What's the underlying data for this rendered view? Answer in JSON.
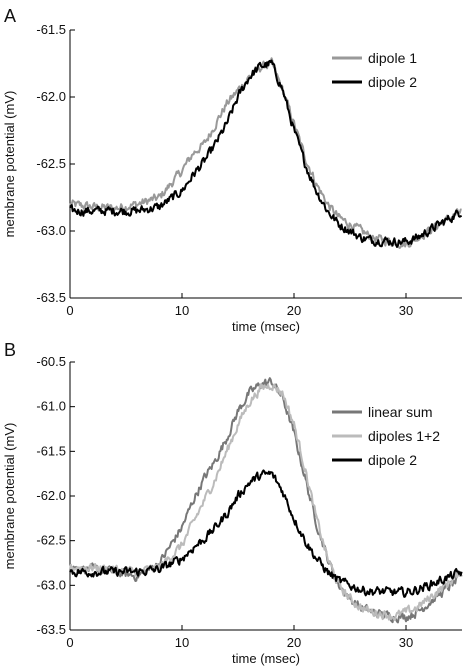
{
  "chart_data": [
    {
      "panel_label": "A",
      "type": "line",
      "xlabel": "time (msec)",
      "ylabel": "membrane potential (mV)",
      "xlim": [
        0,
        35
      ],
      "ylim": [
        -63.5,
        -61.5
      ],
      "xticks": [
        "0",
        "10",
        "20",
        "30"
      ],
      "yticks": [
        "-61.5",
        "-62.0",
        "-62.5",
        "-63.0",
        "-63.5"
      ],
      "legend_position": "top-right",
      "series": [
        {
          "name": "dipole 1",
          "color": "#999999",
          "x": [
            0,
            2,
            4,
            6,
            8,
            10,
            11,
            12,
            13,
            14,
            15,
            16,
            17,
            18,
            19,
            20,
            21,
            22,
            23,
            24,
            25,
            26,
            27,
            28,
            29,
            30,
            31,
            32,
            33,
            34,
            35
          ],
          "y": [
            -62.8,
            -62.82,
            -62.83,
            -62.8,
            -62.75,
            -62.55,
            -62.42,
            -62.35,
            -62.2,
            -62.05,
            -61.95,
            -61.85,
            -61.78,
            -61.75,
            -61.95,
            -62.2,
            -62.45,
            -62.65,
            -62.8,
            -62.9,
            -62.95,
            -63.0,
            -63.05,
            -63.07,
            -63.08,
            -63.1,
            -63.05,
            -63.0,
            -62.95,
            -62.9,
            -62.85
          ]
        },
        {
          "name": "dipole 2",
          "color": "#000000",
          "x": [
            0,
            2,
            4,
            6,
            8,
            10,
            11,
            12,
            13,
            14,
            15,
            16,
            17,
            18,
            19,
            20,
            21,
            22,
            23,
            24,
            25,
            26,
            27,
            28,
            29,
            30,
            31,
            32,
            33,
            34,
            35
          ],
          "y": [
            -62.85,
            -62.85,
            -62.85,
            -62.85,
            -62.82,
            -62.7,
            -62.58,
            -62.48,
            -62.35,
            -62.2,
            -62.0,
            -61.85,
            -61.77,
            -61.75,
            -61.95,
            -62.25,
            -62.5,
            -62.7,
            -62.85,
            -62.95,
            -63.0,
            -63.05,
            -63.07,
            -63.07,
            -63.08,
            -63.08,
            -63.05,
            -63.0,
            -62.95,
            -62.9,
            -62.85
          ]
        }
      ]
    },
    {
      "panel_label": "B",
      "type": "line",
      "xlabel": "time (msec)",
      "ylabel": "membrane potential (mV)",
      "xlim": [
        0,
        35
      ],
      "ylim": [
        -63.5,
        -60.5
      ],
      "xticks": [
        "0",
        "10",
        "20",
        "30"
      ],
      "yticks": [
        "-60.5",
        "-61.0",
        "-61.5",
        "-62.0",
        "-62.5",
        "-63.0",
        "-63.5"
      ],
      "legend_position": "right",
      "series": [
        {
          "name": "linear sum",
          "color": "#777777",
          "x": [
            0,
            2,
            4,
            6,
            8,
            10,
            11,
            12,
            13,
            14,
            15,
            16,
            17,
            18,
            19,
            20,
            21,
            22,
            23,
            24,
            25,
            26,
            27,
            28,
            29,
            30,
            31,
            32,
            33,
            34,
            35
          ],
          "y": [
            -62.8,
            -62.82,
            -62.85,
            -62.9,
            -62.75,
            -62.35,
            -62.05,
            -61.8,
            -61.6,
            -61.35,
            -61.05,
            -60.85,
            -60.75,
            -60.72,
            -60.9,
            -61.3,
            -61.8,
            -62.3,
            -62.7,
            -63.0,
            -63.15,
            -63.25,
            -63.3,
            -63.33,
            -63.35,
            -63.35,
            -63.3,
            -63.2,
            -63.1,
            -63.0,
            -62.9
          ]
        },
        {
          "name": "dipoles 1+2",
          "color": "#bbbbbb",
          "x": [
            0,
            2,
            4,
            6,
            8,
            10,
            11,
            12,
            13,
            14,
            15,
            16,
            17,
            18,
            19,
            20,
            21,
            22,
            23,
            24,
            25,
            26,
            27,
            28,
            29,
            30,
            31,
            32,
            33,
            34,
            35
          ],
          "y": [
            -62.8,
            -62.8,
            -62.82,
            -62.85,
            -62.8,
            -62.55,
            -62.3,
            -62.05,
            -61.8,
            -61.5,
            -61.2,
            -60.95,
            -60.8,
            -60.75,
            -60.85,
            -61.2,
            -61.7,
            -62.25,
            -62.7,
            -63.0,
            -63.15,
            -63.25,
            -63.3,
            -63.32,
            -63.35,
            -63.3,
            -63.25,
            -63.15,
            -63.05,
            -62.95,
            -62.85
          ]
        },
        {
          "name": "dipole 2",
          "color": "#000000",
          "x": [
            0,
            2,
            4,
            6,
            8,
            10,
            11,
            12,
            13,
            14,
            15,
            16,
            17,
            18,
            19,
            20,
            21,
            22,
            23,
            24,
            25,
            26,
            27,
            28,
            29,
            30,
            31,
            32,
            33,
            34,
            35
          ],
          "y": [
            -62.85,
            -62.85,
            -62.85,
            -62.85,
            -62.82,
            -62.7,
            -62.58,
            -62.48,
            -62.35,
            -62.2,
            -62.0,
            -61.85,
            -61.77,
            -61.75,
            -61.95,
            -62.25,
            -62.5,
            -62.7,
            -62.85,
            -62.95,
            -63.0,
            -63.05,
            -63.07,
            -63.07,
            -63.08,
            -63.08,
            -63.05,
            -63.0,
            -62.95,
            -62.9,
            -62.85
          ]
        }
      ]
    }
  ]
}
